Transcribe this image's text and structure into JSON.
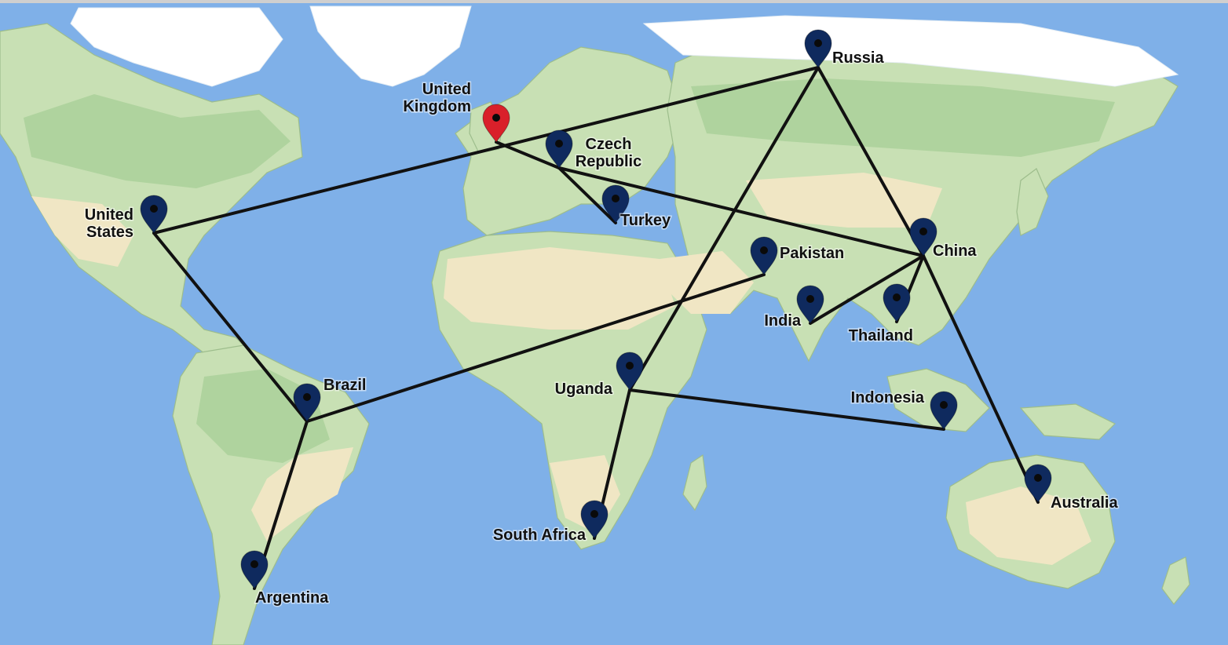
{
  "colors": {
    "ocean": "#7fb0e8",
    "land": "#c8e0b4",
    "desert": "#f0e6c4",
    "ice": "#ffffff",
    "route": "#111111",
    "pin_default": "#0f2a5e",
    "pin_highlight": "#d9202a"
  },
  "locations": [
    {
      "id": "united-kingdom",
      "label": [
        "United",
        "Kingdom"
      ],
      "icon": "map-pin-icon",
      "highlight": true
    },
    {
      "id": "russia",
      "label": [
        "Russia"
      ],
      "icon": "map-pin-icon",
      "highlight": false
    },
    {
      "id": "czech-republic",
      "label": [
        "Czech",
        "Republic"
      ],
      "icon": "map-pin-icon",
      "highlight": false
    },
    {
      "id": "turkey",
      "label": [
        "Turkey"
      ],
      "icon": "map-pin-icon",
      "highlight": false
    },
    {
      "id": "united-states",
      "label": [
        "United",
        "States"
      ],
      "icon": "map-pin-icon",
      "highlight": false
    },
    {
      "id": "pakistan",
      "label": [
        "Pakistan"
      ],
      "icon": "map-pin-icon",
      "highlight": false
    },
    {
      "id": "china",
      "label": [
        "China"
      ],
      "icon": "map-pin-icon",
      "highlight": false
    },
    {
      "id": "india",
      "label": [
        "India"
      ],
      "icon": "map-pin-icon",
      "highlight": false
    },
    {
      "id": "thailand",
      "label": [
        "Thailand"
      ],
      "icon": "map-pin-icon",
      "highlight": false
    },
    {
      "id": "brazil",
      "label": [
        "Brazil"
      ],
      "icon": "map-pin-icon",
      "highlight": false
    },
    {
      "id": "uganda",
      "label": [
        "Uganda"
      ],
      "icon": "map-pin-icon",
      "highlight": false
    },
    {
      "id": "indonesia",
      "label": [
        "Indonesia"
      ],
      "icon": "map-pin-icon",
      "highlight": false
    },
    {
      "id": "australia",
      "label": [
        "Australia"
      ],
      "icon": "map-pin-icon",
      "highlight": false
    },
    {
      "id": "south-africa",
      "label": [
        "South Africa"
      ],
      "icon": "map-pin-icon",
      "highlight": false
    },
    {
      "id": "argentina",
      "label": [
        "Argentina"
      ],
      "icon": "map-pin-icon",
      "highlight": false
    }
  ],
  "routes": [
    [
      "united-states",
      "russia"
    ],
    [
      "united-states",
      "brazil"
    ],
    [
      "brazil",
      "argentina"
    ],
    [
      "brazil",
      "pakistan"
    ],
    [
      "united-kingdom",
      "czech-republic"
    ],
    [
      "czech-republic",
      "turkey"
    ],
    [
      "czech-republic",
      "china"
    ],
    [
      "russia",
      "uganda"
    ],
    [
      "russia",
      "china"
    ],
    [
      "uganda",
      "south-africa"
    ],
    [
      "uganda",
      "indonesia"
    ],
    [
      "china",
      "india"
    ],
    [
      "china",
      "thailand"
    ],
    [
      "china",
      "australia"
    ]
  ]
}
